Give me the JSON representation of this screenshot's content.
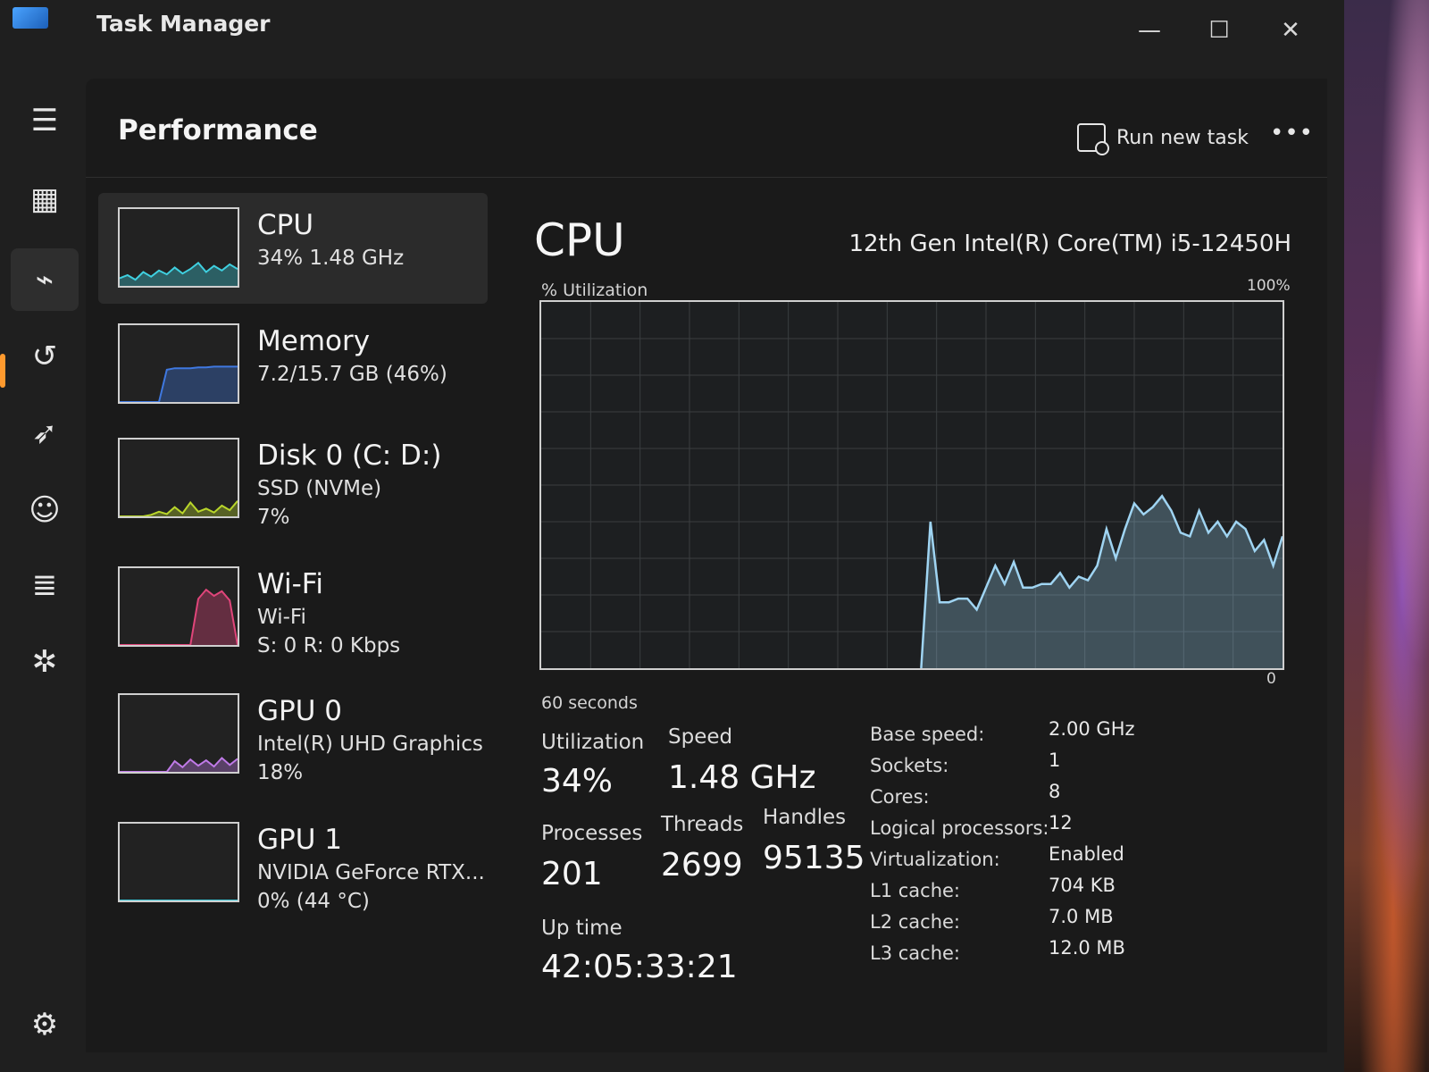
{
  "window": {
    "title": "Task Manager",
    "controls": {
      "minimize": "—",
      "maximize": "☐",
      "close": "✕"
    }
  },
  "nav": {
    "items": [
      {
        "icon": "hamburger-menu-icon",
        "glyph": "☰"
      },
      {
        "icon": "processes-icon",
        "glyph": "▦"
      },
      {
        "icon": "performance-icon",
        "glyph": "⌁",
        "active": true
      },
      {
        "icon": "app-history-icon",
        "glyph": "↺"
      },
      {
        "icon": "startup-apps-icon",
        "glyph": "➶"
      },
      {
        "icon": "users-icon",
        "glyph": "☺"
      },
      {
        "icon": "details-icon",
        "glyph": "≣"
      },
      {
        "icon": "services-icon",
        "glyph": "✲"
      }
    ],
    "settings_glyph": "⚙"
  },
  "header": {
    "title": "Performance",
    "run_task_label": "Run new task",
    "more_label": "•••"
  },
  "devices": [
    {
      "title": "CPU",
      "line1": "34%  1.48 GHz",
      "line2": "",
      "color": "#3fd0e0",
      "graph": [
        10,
        14,
        8,
        18,
        12,
        20,
        15,
        24,
        16,
        22,
        30,
        18,
        26,
        20,
        28,
        22
      ]
    },
    {
      "title": "Memory",
      "line1": "7.2/15.7 GB (46%)",
      "line2": "",
      "color": "#3f78e0",
      "graph": [
        0,
        0,
        0,
        0,
        0,
        0,
        42,
        44,
        44,
        44,
        45,
        45,
        46,
        46,
        46,
        46
      ]
    },
    {
      "title": "Disk 0 (C: D:)",
      "line1": "SSD (NVMe)",
      "line2": "7%",
      "color": "#b9d62a",
      "graph": [
        0,
        0,
        0,
        0,
        2,
        6,
        3,
        12,
        4,
        18,
        6,
        10,
        5,
        14,
        8,
        20
      ]
    },
    {
      "title": "Wi-Fi",
      "line1": "Wi-Fi",
      "line2": "S: 0 R: 0 Kbps",
      "color": "#e0457a",
      "graph": [
        0,
        0,
        0,
        0,
        0,
        0,
        0,
        0,
        0,
        0,
        60,
        72,
        64,
        70,
        58,
        0
      ]
    },
    {
      "title": "GPU 0",
      "line1": "Intel(R) UHD Graphics",
      "line2": "18%",
      "color": "#c07ae8",
      "graph": [
        0,
        0,
        0,
        0,
        0,
        0,
        0,
        14,
        6,
        16,
        8,
        15,
        7,
        18,
        9,
        17
      ]
    },
    {
      "title": "GPU 1",
      "line1": "NVIDIA GeForce RTX...",
      "line2": "0%  (44 °C)",
      "color": "#3fd0e0",
      "graph": [
        0,
        0,
        0,
        0,
        0,
        0,
        0,
        0,
        0,
        0,
        0,
        0,
        0,
        0,
        0,
        0
      ]
    }
  ],
  "detail": {
    "title": "CPU",
    "model": "12th Gen Intel(R) Core(TM) i5-12450H",
    "y_label": "% Utilization",
    "y_max": "100%",
    "y_min": "0",
    "x_label": "60 seconds",
    "line_color": "#9fd4f2",
    "utilization_history": [
      0,
      0,
      0,
      0,
      0,
      0,
      0,
      0,
      0,
      0,
      0,
      0,
      0,
      0,
      0,
      0,
      0,
      0,
      0,
      0,
      0,
      0,
      0,
      0,
      0,
      0,
      0,
      0,
      0,
      0,
      0,
      0,
      0,
      0,
      0,
      0,
      0,
      0,
      0,
      0,
      0,
      0,
      40,
      18,
      18,
      19,
      19,
      16,
      22,
      28,
      23,
      29,
      22,
      22,
      23,
      23,
      26,
      22,
      25,
      24,
      28,
      38,
      30,
      38,
      45,
      42,
      44,
      47,
      43,
      37,
      36,
      43,
      37,
      40,
      36,
      40,
      38,
      32,
      35,
      28,
      36
    ]
  },
  "stats": {
    "utilization_label": "Utilization",
    "utilization_value": "34%",
    "speed_label": "Speed",
    "speed_value": "1.48 GHz",
    "processes_label": "Processes",
    "processes_value": "201",
    "threads_label": "Threads",
    "threads_value": "2699",
    "handles_label": "Handles",
    "handles_value": "95135",
    "uptime_label": "Up time",
    "uptime_value": "42:05:33:21"
  },
  "specs": [
    {
      "label": "Base speed:",
      "value": "2.00 GHz"
    },
    {
      "label": "Sockets:",
      "value": "1"
    },
    {
      "label": "Cores:",
      "value": "8"
    },
    {
      "label": "Logical processors:",
      "value": "12"
    },
    {
      "label": "Virtualization:",
      "value": "Enabled"
    },
    {
      "label": "L1 cache:",
      "value": "704 KB"
    },
    {
      "label": "L2 cache:",
      "value": "7.0 MB"
    },
    {
      "label": "L3 cache:",
      "value": "12.0 MB"
    }
  ]
}
